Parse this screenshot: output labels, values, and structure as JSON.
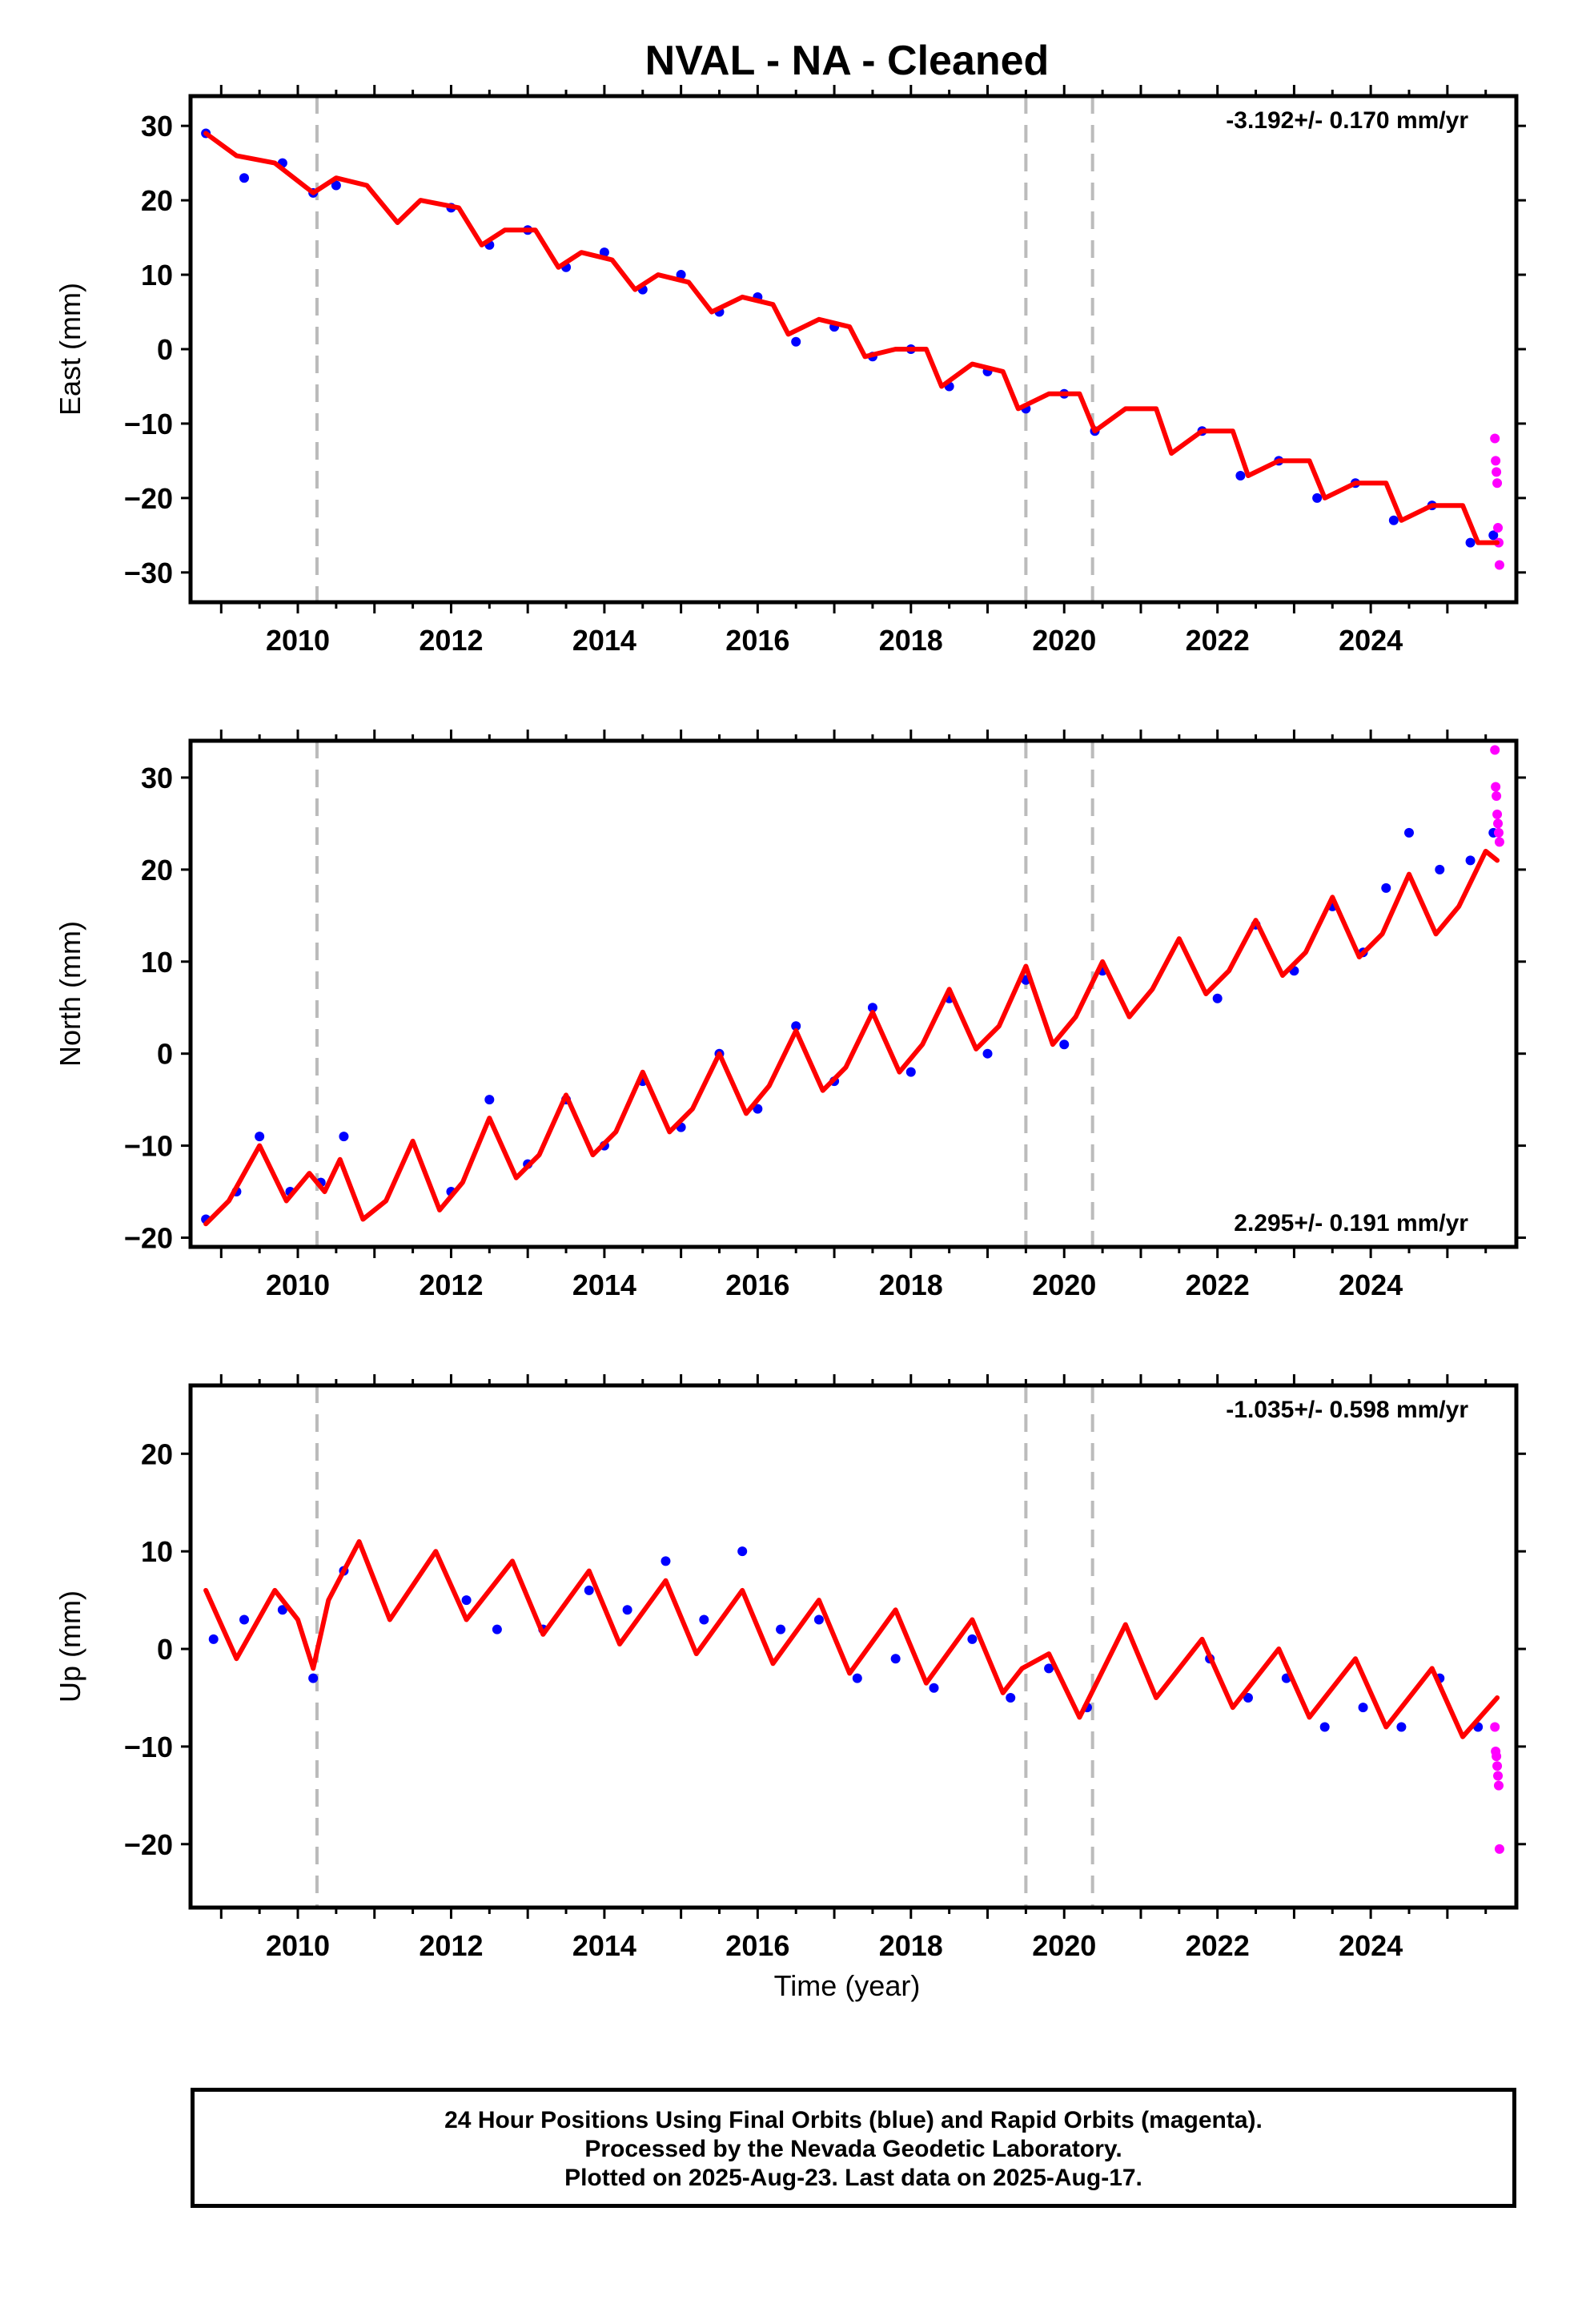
{
  "title": "NVAL  - NA - Cleaned",
  "xlabel": "Time (year)",
  "footer": {
    "line1": "24 Hour Positions Using Final Orbits (blue) and Rapid Orbits (magenta).",
    "line2": "Processed by the Nevada Geodetic Laboratory.",
    "line3": "Plotted on 2025-Aug-23. Last data on 2025-Aug-17."
  },
  "colors": {
    "final_orbits": "#0000ff",
    "rapid_orbits": "#ff00ff",
    "model_fit": "#ff0000",
    "event_lines": "#bbbbbb"
  },
  "chart_data": [
    {
      "type": "scatter",
      "component": "east",
      "ylabel": "East (mm)",
      "rate_label": "-3.192+/- 0.170 mm/yr",
      "rate_position": "top-right",
      "xlim": [
        2008.6,
        2025.9
      ],
      "ylim": [
        -34,
        34
      ],
      "xticks": [
        2010,
        2012,
        2014,
        2016,
        2018,
        2020,
        2022,
        2024
      ],
      "yticks": [
        -30,
        -20,
        -10,
        0,
        10,
        20,
        30
      ],
      "event_lines": [
        2010.25,
        2019.5,
        2020.37
      ],
      "series": [
        {
          "name": "Final Orbits",
          "style": "points",
          "color": "#0000ff",
          "x": [
            2008.8,
            2009.3,
            2009.8,
            2010.2,
            2010.5,
            2012.0,
            2012.5,
            2013.0,
            2013.5,
            2014.0,
            2014.5,
            2015.0,
            2015.5,
            2016.0,
            2016.5,
            2017.0,
            2017.5,
            2018.0,
            2018.5,
            2019.0,
            2019.5,
            2020.0,
            2020.4,
            2021.8,
            2022.3,
            2022.8,
            2023.3,
            2023.8,
            2024.3,
            2024.8,
            2025.3,
            2025.6
          ],
          "y": [
            29,
            23,
            25,
            21,
            22,
            19,
            14,
            16,
            11,
            13,
            8,
            10,
            5,
            7,
            1,
            3,
            -1,
            0,
            -5,
            -3,
            -8,
            -6,
            -11,
            -11,
            -17,
            -15,
            -20,
            -18,
            -23,
            -21,
            -26,
            -25
          ]
        },
        {
          "name": "Rapid Orbits",
          "style": "points",
          "color": "#ff00ff",
          "x": [
            2025.62,
            2025.63,
            2025.64,
            2025.65,
            2025.66,
            2025.67,
            2025.68
          ],
          "y": [
            -12,
            -15,
            -16.5,
            -18,
            -24,
            -26,
            -29
          ]
        },
        {
          "name": "Model",
          "style": "line",
          "color": "#ff0000",
          "x": [
            2008.8,
            2009.2,
            2009.7,
            2010.2,
            2010.5,
            2010.9,
            2011.3,
            2011.6,
            2012.1,
            2012.4,
            2012.7,
            2013.1,
            2013.4,
            2013.7,
            2014.1,
            2014.4,
            2014.7,
            2015.1,
            2015.4,
            2015.8,
            2016.2,
            2016.4,
            2016.8,
            2017.2,
            2017.4,
            2017.8,
            2018.2,
            2018.4,
            2018.8,
            2019.2,
            2019.4,
            2019.8,
            2020.2,
            2020.4,
            2020.8,
            2021.2,
            2021.4,
            2021.8,
            2022.2,
            2022.4,
            2022.8,
            2023.2,
            2023.4,
            2023.8,
            2024.2,
            2024.4,
            2024.8,
            2025.2,
            2025.4,
            2025.65
          ],
          "y": [
            29,
            26,
            25,
            21,
            23,
            22,
            17,
            20,
            19,
            14,
            16,
            16,
            11,
            13,
            12,
            8,
            10,
            9,
            5,
            7,
            6,
            2,
            4,
            3,
            -1,
            0,
            0,
            -5,
            -2,
            -3,
            -8,
            -6,
            -6,
            -11,
            -8,
            -8,
            -14,
            -11,
            -11,
            -17,
            -15,
            -15,
            -20,
            -18,
            -18,
            -23,
            -21,
            -21,
            -26,
            -26
          ]
        }
      ]
    },
    {
      "type": "scatter",
      "component": "north",
      "ylabel": "North (mm)",
      "rate_label": "2.295+/- 0.191 mm/yr",
      "rate_position": "bottom-right",
      "xlim": [
        2008.6,
        2025.9
      ],
      "ylim": [
        -21,
        34
      ],
      "xticks": [
        2010,
        2012,
        2014,
        2016,
        2018,
        2020,
        2022,
        2024
      ],
      "yticks": [
        -20,
        -10,
        0,
        10,
        20,
        30
      ],
      "event_lines": [
        2010.25,
        2019.5,
        2020.37
      ],
      "series": [
        {
          "name": "Final Orbits",
          "style": "points",
          "color": "#0000ff",
          "x": [
            2008.8,
            2009.2,
            2009.5,
            2009.9,
            2010.3,
            2010.6,
            2012.0,
            2012.5,
            2013.0,
            2013.5,
            2014.0,
            2014.5,
            2015.0,
            2015.5,
            2016.0,
            2016.5,
            2017.0,
            2017.5,
            2018.0,
            2018.5,
            2019.0,
            2019.5,
            2020.0,
            2020.5,
            2022.0,
            2022.5,
            2023.0,
            2023.5,
            2023.9,
            2024.2,
            2024.5,
            2024.9,
            2025.3,
            2025.6
          ],
          "y": [
            -18,
            -15,
            -9,
            -15,
            -14,
            -9,
            -15,
            -5,
            -12,
            -5,
            -10,
            -3,
            -8,
            0,
            -6,
            3,
            -3,
            5,
            -2,
            6,
            0,
            8,
            1,
            9,
            6,
            14,
            9,
            16,
            11,
            18,
            24,
            20,
            21,
            24
          ]
        },
        {
          "name": "Rapid Orbits",
          "style": "points",
          "color": "#ff00ff",
          "x": [
            2025.62,
            2025.63,
            2025.64,
            2025.65,
            2025.66,
            2025.67,
            2025.68
          ],
          "y": [
            33,
            29,
            28,
            26,
            25,
            24,
            23
          ]
        },
        {
          "name": "Model",
          "style": "line",
          "color": "#ff0000",
          "x": [
            2008.8,
            2009.1,
            2009.5,
            2009.85,
            2010.15,
            2010.35,
            2010.55,
            2010.85,
            2011.15,
            2011.5,
            2011.85,
            2012.15,
            2012.5,
            2012.85,
            2013.15,
            2013.5,
            2013.85,
            2014.15,
            2014.5,
            2014.85,
            2015.15,
            2015.5,
            2015.85,
            2016.15,
            2016.5,
            2016.85,
            2017.15,
            2017.5,
            2017.85,
            2018.15,
            2018.5,
            2018.85,
            2019.15,
            2019.5,
            2019.85,
            2020.15,
            2020.5,
            2020.85,
            2021.15,
            2021.5,
            2021.85,
            2022.15,
            2022.5,
            2022.85,
            2023.15,
            2023.5,
            2023.85,
            2024.15,
            2024.5,
            2024.85,
            2025.15,
            2025.5,
            2025.65
          ],
          "y": [
            -18.5,
            -16,
            -10,
            -16,
            -13,
            -15,
            -11.5,
            -18,
            -16,
            -9.5,
            -17,
            -14,
            -7,
            -13.5,
            -11,
            -4.5,
            -11,
            -8.5,
            -2,
            -8.5,
            -6,
            0,
            -6.5,
            -3.5,
            2.5,
            -4,
            -1.5,
            4.5,
            -2,
            1,
            7,
            0.5,
            3,
            9.5,
            1,
            4,
            10,
            4,
            7,
            12.5,
            6.5,
            9,
            14.5,
            8.5,
            11,
            17,
            10.5,
            13,
            19.5,
            13,
            16,
            22,
            21
          ]
        }
      ]
    },
    {
      "type": "scatter",
      "component": "up",
      "ylabel": "Up (mm)",
      "rate_label": "-1.035+/- 0.598 mm/yr",
      "rate_position": "top-right",
      "xlim": [
        2008.6,
        2025.9
      ],
      "ylim": [
        -26.5,
        27
      ],
      "xticks": [
        2010,
        2012,
        2014,
        2016,
        2018,
        2020,
        2022,
        2024
      ],
      "yticks": [
        -20,
        -10,
        0,
        10,
        20
      ],
      "event_lines": [
        2010.25,
        2019.5,
        2020.37
      ],
      "series": [
        {
          "name": "Final Orbits",
          "style": "points",
          "color": "#0000ff",
          "x": [
            2008.9,
            2009.3,
            2009.8,
            2010.2,
            2010.6,
            2012.2,
            2012.6,
            2013.2,
            2013.8,
            2014.3,
            2014.8,
            2015.3,
            2015.8,
            2016.3,
            2016.8,
            2017.3,
            2017.8,
            2018.3,
            2018.8,
            2019.3,
            2019.8,
            2020.3,
            2021.9,
            2022.4,
            2022.9,
            2023.4,
            2023.9,
            2024.4,
            2024.9,
            2025.4
          ],
          "y": [
            1,
            3,
            4,
            -3,
            8,
            5,
            2,
            2,
            6,
            4,
            9,
            3,
            10,
            2,
            3,
            -3,
            -1,
            -4,
            1,
            -5,
            -2,
            -6,
            -1,
            -5,
            -3,
            -8,
            -6,
            -8,
            -3,
            -8
          ]
        },
        {
          "name": "Rapid Orbits",
          "style": "points",
          "color": "#ff00ff",
          "x": [
            2025.62,
            2025.63,
            2025.64,
            2025.65,
            2025.66,
            2025.67,
            2025.68
          ],
          "y": [
            -8,
            -10.5,
            -11,
            -12,
            -13,
            -14,
            -20.5
          ]
        },
        {
          "name": "Model",
          "style": "line",
          "color": "#ff0000",
          "x": [
            2008.8,
            2009.2,
            2009.7,
            2010.0,
            2010.2,
            2010.4,
            2010.8,
            2011.2,
            2011.8,
            2012.2,
            2012.8,
            2013.2,
            2013.8,
            2014.2,
            2014.8,
            2015.2,
            2015.8,
            2016.2,
            2016.8,
            2017.2,
            2017.8,
            2018.2,
            2018.8,
            2019.2,
            2019.45,
            2019.8,
            2020.2,
            2020.8,
            2021.2,
            2021.8,
            2022.2,
            2022.8,
            2023.2,
            2023.8,
            2024.2,
            2024.8,
            2025.2,
            2025.65
          ],
          "y": [
            6,
            -1,
            6,
            3,
            -2,
            5,
            11,
            3,
            10,
            3,
            9,
            1.5,
            8,
            0.5,
            7,
            -0.5,
            6,
            -1.5,
            5,
            -2.5,
            4,
            -3.5,
            3,
            -4.5,
            -2,
            -0.5,
            -7,
            2.5,
            -5,
            1,
            -6,
            0,
            -7,
            -1,
            -8,
            -2,
            -9,
            -5
          ]
        }
      ]
    }
  ]
}
